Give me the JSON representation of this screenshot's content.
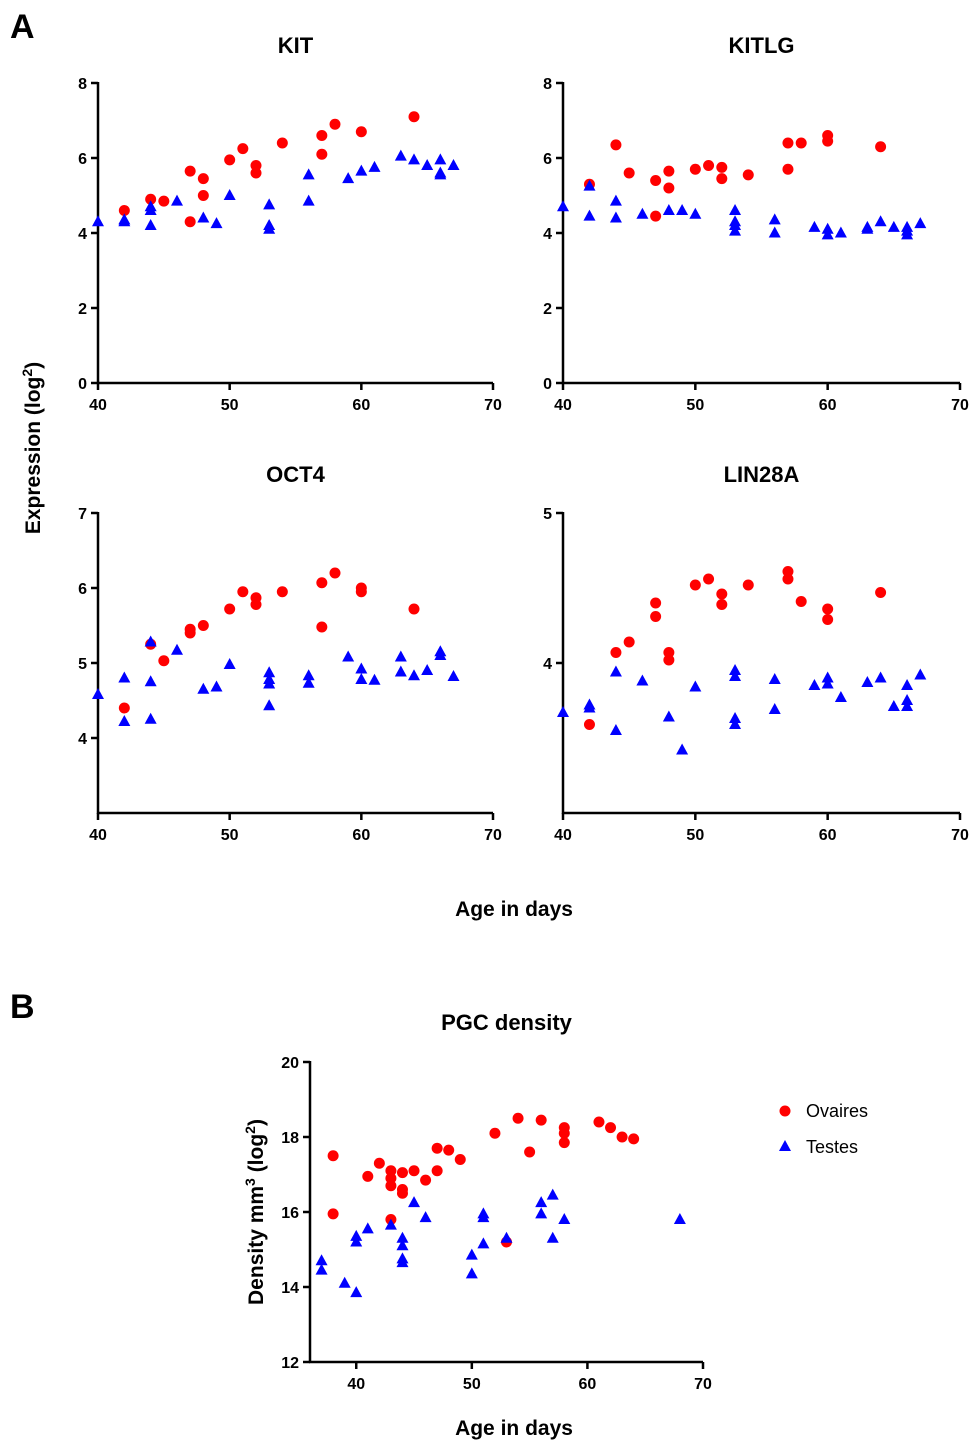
{
  "figure": {
    "panel_a_label": "A",
    "panel_b_label": "B",
    "panel_a_ylabel": "Expression (log",
    "panel_a_ylabel_sup": "2",
    "panel_a_ylabel_end": ")",
    "panel_a_xlabel": "Age in days",
    "legend": [
      {
        "label": "Ovaires",
        "shape": "circle",
        "color": "#ff0000"
      },
      {
        "label": "Testes",
        "shape": "triangle",
        "color": "#0000ff"
      }
    ]
  },
  "chart_data": [
    {
      "type": "scatter",
      "title": "KIT",
      "xlim": [
        40,
        70
      ],
      "ylim": [
        0,
        8
      ],
      "x_ticks": [
        "40",
        "50",
        "60",
        "70"
      ],
      "y_ticks": [
        "0",
        "2",
        "4",
        "6",
        "8"
      ],
      "series": [
        {
          "name": "Ovaires",
          "marker": "circle",
          "color": "#ff0000",
          "points": [
            [
              42,
              4.6
            ],
            [
              44,
              4.9
            ],
            [
              45,
              4.85
            ],
            [
              47,
              5.65
            ],
            [
              47,
              4.3
            ],
            [
              48,
              5.45
            ],
            [
              48,
              5.0
            ],
            [
              50,
              5.95
            ],
            [
              51,
              6.25
            ],
            [
              52,
              5.8
            ],
            [
              52,
              5.6
            ],
            [
              54,
              6.4
            ],
            [
              57,
              6.6
            ],
            [
              57,
              6.1
            ],
            [
              58,
              6.9
            ],
            [
              60,
              6.7
            ],
            [
              64,
              7.1
            ]
          ]
        },
        {
          "name": "Testes",
          "marker": "triangle",
          "color": "#0000ff",
          "points": [
            [
              40,
              4.3
            ],
            [
              42,
              4.35
            ],
            [
              42,
              4.3
            ],
            [
              44,
              4.7
            ],
            [
              44,
              4.6
            ],
            [
              44,
              4.2
            ],
            [
              46,
              4.85
            ],
            [
              48,
              4.4
            ],
            [
              49,
              4.25
            ],
            [
              50,
              5.0
            ],
            [
              53,
              4.75
            ],
            [
              53,
              4.2
            ],
            [
              53,
              4.1
            ],
            [
              56,
              5.55
            ],
            [
              56,
              4.85
            ],
            [
              59,
              5.45
            ],
            [
              60,
              5.65
            ],
            [
              61,
              5.75
            ],
            [
              63,
              6.05
            ],
            [
              64,
              5.95
            ],
            [
              65,
              5.8
            ],
            [
              66,
              5.95
            ],
            [
              66,
              5.6
            ],
            [
              66,
              5.55
            ],
            [
              67,
              5.8
            ]
          ]
        }
      ]
    },
    {
      "type": "scatter",
      "title": "KITLG",
      "xlim": [
        40,
        70
      ],
      "ylim": [
        0,
        8
      ],
      "x_ticks": [
        "40",
        "50",
        "60",
        "70"
      ],
      "y_ticks": [
        "0",
        "2",
        "4",
        "6",
        "8"
      ],
      "series": [
        {
          "name": "Ovaires",
          "marker": "circle",
          "color": "#ff0000",
          "points": [
            [
              42,
              5.3
            ],
            [
              44,
              6.35
            ],
            [
              45,
              5.6
            ],
            [
              47,
              5.4
            ],
            [
              47,
              4.45
            ],
            [
              48,
              5.65
            ],
            [
              48,
              5.2
            ],
            [
              50,
              5.7
            ],
            [
              51,
              5.8
            ],
            [
              52,
              5.75
            ],
            [
              52,
              5.45
            ],
            [
              54,
              5.55
            ],
            [
              57,
              6.4
            ],
            [
              57,
              5.7
            ],
            [
              58,
              6.4
            ],
            [
              60,
              6.6
            ],
            [
              60,
              6.45
            ],
            [
              64,
              6.3
            ]
          ]
        },
        {
          "name": "Testes",
          "marker": "triangle",
          "color": "#0000ff",
          "points": [
            [
              40,
              4.7
            ],
            [
              42,
              5.25
            ],
            [
              42,
              4.45
            ],
            [
              44,
              4.85
            ],
            [
              44,
              4.4
            ],
            [
              46,
              4.5
            ],
            [
              48,
              4.6
            ],
            [
              49,
              4.6
            ],
            [
              50,
              4.5
            ],
            [
              53,
              4.6
            ],
            [
              53,
              4.3
            ],
            [
              53,
              4.2
            ],
            [
              53,
              4.05
            ],
            [
              56,
              4.35
            ],
            [
              56,
              4.0
            ],
            [
              59,
              4.15
            ],
            [
              60,
              4.1
            ],
            [
              60,
              3.95
            ],
            [
              61,
              4.0
            ],
            [
              63,
              4.15
            ],
            [
              63,
              4.1
            ],
            [
              64,
              4.3
            ],
            [
              65,
              4.15
            ],
            [
              66,
              4.15
            ],
            [
              66,
              4.05
            ],
            [
              66,
              3.95
            ],
            [
              67,
              4.25
            ]
          ]
        }
      ]
    },
    {
      "type": "scatter",
      "title": "OCT4",
      "xlim": [
        40,
        70
      ],
      "ylim": [
        3,
        7
      ],
      "x_ticks": [
        "40",
        "50",
        "60",
        "70"
      ],
      "y_ticks": [
        "4",
        "5",
        "6",
        "7"
      ],
      "series": [
        {
          "name": "Ovaires",
          "marker": "circle",
          "color": "#ff0000",
          "points": [
            [
              42,
              4.4
            ],
            [
              44,
              5.25
            ],
            [
              45,
              5.03
            ],
            [
              47,
              5.45
            ],
            [
              47,
              5.4
            ],
            [
              48,
              5.5
            ],
            [
              50,
              5.72
            ],
            [
              51,
              5.95
            ],
            [
              52,
              5.87
            ],
            [
              52,
              5.78
            ],
            [
              54,
              5.95
            ],
            [
              57,
              6.07
            ],
            [
              57,
              5.48
            ],
            [
              58,
              6.2
            ],
            [
              60,
              6.0
            ],
            [
              60,
              5.95
            ],
            [
              64,
              5.72
            ]
          ]
        },
        {
          "name": "Testes",
          "marker": "triangle",
          "color": "#0000ff",
          "points": [
            [
              40,
              4.58
            ],
            [
              42,
              4.8
            ],
            [
              42,
              4.22
            ],
            [
              44,
              5.28
            ],
            [
              44,
              4.75
            ],
            [
              44,
              4.25
            ],
            [
              46,
              5.17
            ],
            [
              48,
              4.65
            ],
            [
              49,
              4.68
            ],
            [
              50,
              4.98
            ],
            [
              53,
              4.87
            ],
            [
              53,
              4.78
            ],
            [
              53,
              4.72
            ],
            [
              53,
              4.43
            ],
            [
              56,
              4.83
            ],
            [
              56,
              4.73
            ],
            [
              59,
              5.08
            ],
            [
              60,
              4.92
            ],
            [
              60,
              4.78
            ],
            [
              61,
              4.77
            ],
            [
              63,
              5.08
            ],
            [
              63,
              4.88
            ],
            [
              64,
              4.83
            ],
            [
              65,
              4.9
            ],
            [
              66,
              5.15
            ],
            [
              66,
              5.1
            ],
            [
              67,
              4.82
            ]
          ]
        }
      ]
    },
    {
      "type": "scatter",
      "title": "LIN28A",
      "xlim": [
        40,
        70
      ],
      "ylim": [
        3,
        5
      ],
      "x_ticks": [
        "40",
        "50",
        "60",
        "70"
      ],
      "y_ticks": [
        "4",
        "5"
      ],
      "series": [
        {
          "name": "Ovaires",
          "marker": "circle",
          "color": "#ff0000",
          "points": [
            [
              42,
              3.59
            ],
            [
              44,
              4.07
            ],
            [
              45,
              4.14
            ],
            [
              47,
              4.4
            ],
            [
              47,
              4.31
            ],
            [
              48,
              4.07
            ],
            [
              48,
              4.02
            ],
            [
              50,
              4.52
            ],
            [
              51,
              4.56
            ],
            [
              52,
              4.46
            ],
            [
              52,
              4.39
            ],
            [
              54,
              4.52
            ],
            [
              57,
              4.61
            ],
            [
              57,
              4.56
            ],
            [
              58,
              4.41
            ],
            [
              60,
              4.36
            ],
            [
              60,
              4.29
            ],
            [
              64,
              4.47
            ]
          ]
        },
        {
          "name": "Testes",
          "marker": "triangle",
          "color": "#0000ff",
          "points": [
            [
              40,
              3.67
            ],
            [
              42,
              3.72
            ],
            [
              42,
              3.7
            ],
            [
              44,
              3.94
            ],
            [
              44,
              3.55
            ],
            [
              46,
              3.88
            ],
            [
              48,
              3.64
            ],
            [
              49,
              3.42
            ],
            [
              50,
              3.84
            ],
            [
              53,
              3.95
            ],
            [
              53,
              3.91
            ],
            [
              53,
              3.63
            ],
            [
              53,
              3.59
            ],
            [
              56,
              3.89
            ],
            [
              56,
              3.69
            ],
            [
              59,
              3.85
            ],
            [
              60,
              3.9
            ],
            [
              60,
              3.86
            ],
            [
              61,
              3.77
            ],
            [
              63,
              3.87
            ],
            [
              64,
              3.9
            ],
            [
              65,
              3.71
            ],
            [
              66,
              3.85
            ],
            [
              66,
              3.75
            ],
            [
              66,
              3.71
            ],
            [
              67,
              3.92
            ]
          ]
        }
      ]
    },
    {
      "type": "scatter",
      "title": "PGC density",
      "xlabel": "Age in days",
      "ylabel": "Density mm",
      "ylabel_sup1": "3",
      "ylabel_mid": " (log",
      "ylabel_sup2": "2",
      "ylabel_end": ")",
      "xlim": [
        36,
        70
      ],
      "ylim": [
        12,
        20
      ],
      "x_ticks": [
        "40",
        "50",
        "60",
        "70"
      ],
      "y_ticks": [
        "12",
        "14",
        "16",
        "18",
        "20"
      ],
      "legend_position": "right",
      "series": [
        {
          "name": "Ovaires",
          "marker": "circle",
          "color": "#ff0000",
          "points": [
            [
              38,
              17.5
            ],
            [
              38,
              15.95
            ],
            [
              41,
              16.95
            ],
            [
              42,
              17.3
            ],
            [
              43,
              17.1
            ],
            [
              43,
              16.9
            ],
            [
              43,
              16.7
            ],
            [
              43,
              15.8
            ],
            [
              44,
              17.05
            ],
            [
              44,
              16.6
            ],
            [
              44,
              16.5
            ],
            [
              45,
              17.1
            ],
            [
              46,
              16.85
            ],
            [
              47,
              17.7
            ],
            [
              47,
              17.1
            ],
            [
              48,
              17.65
            ],
            [
              49,
              17.4
            ],
            [
              52,
              18.1
            ],
            [
              54,
              18.5
            ],
            [
              55,
              17.6
            ],
            [
              56,
              18.45
            ],
            [
              58,
              18.25
            ],
            [
              58,
              18.1
            ],
            [
              58,
              17.85
            ],
            [
              61,
              18.4
            ],
            [
              62,
              18.25
            ],
            [
              63,
              18.0
            ],
            [
              64,
              17.95
            ],
            [
              53,
              15.2
            ]
          ]
        },
        {
          "name": "Testes",
          "marker": "triangle",
          "color": "#0000ff",
          "points": [
            [
              37,
              14.7
            ],
            [
              37,
              14.45
            ],
            [
              39,
              14.1
            ],
            [
              40,
              15.35
            ],
            [
              40,
              15.2
            ],
            [
              40,
              13.85
            ],
            [
              41,
              15.55
            ],
            [
              43,
              15.65
            ],
            [
              44,
              15.3
            ],
            [
              44,
              15.1
            ],
            [
              44,
              14.75
            ],
            [
              44,
              14.65
            ],
            [
              45,
              16.25
            ],
            [
              46,
              15.85
            ],
            [
              50,
              14.85
            ],
            [
              50,
              14.35
            ],
            [
              51,
              15.95
            ],
            [
              51,
              15.85
            ],
            [
              51,
              15.15
            ],
            [
              53,
              15.3
            ],
            [
              56,
              16.25
            ],
            [
              56,
              15.95
            ],
            [
              57,
              16.45
            ],
            [
              57,
              15.3
            ],
            [
              58,
              15.8
            ],
            [
              68,
              15.8
            ]
          ]
        }
      ]
    }
  ]
}
